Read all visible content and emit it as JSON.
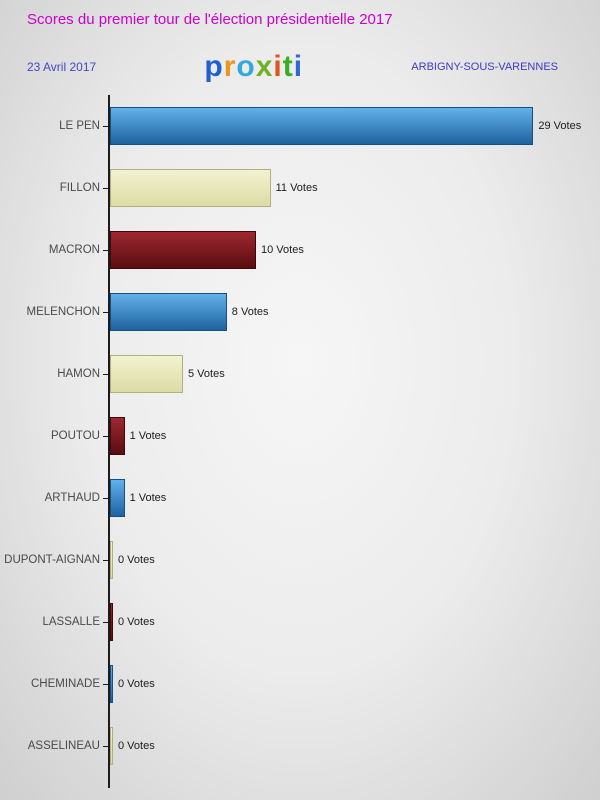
{
  "header": {
    "title": "Scores du premier tour de l'élection présidentielle 2017",
    "title_color": "#cc00cc",
    "date": "23 Avril 2017",
    "date_color": "#4545cf",
    "city": "ARBIGNY-SOUS-VARENNES",
    "city_color": "#3b3bc4",
    "logo_letters": [
      {
        "ch": "p",
        "color": "#1f5fd0"
      },
      {
        "ch": "r",
        "color": "#f0941d"
      },
      {
        "ch": "o",
        "color": "#35a8e0"
      },
      {
        "ch": "x",
        "color": "#6fb024"
      },
      {
        "ch": "i",
        "color": "#e0551d"
      },
      {
        "ch": "t",
        "color": "#35b024"
      },
      {
        "ch": "i",
        "color": "#2b6bd4"
      }
    ]
  },
  "chart_data": {
    "type": "bar",
    "orientation": "horizontal",
    "title": "Scores du premier tour de l'élection présidentielle 2017",
    "categories": [
      "LE PEN",
      "FILLON",
      "MACRON",
      "MELENCHON",
      "HAMON",
      "POUTOU",
      "ARTHAUD",
      "DUPONT-AIGNAN",
      "LASSALLE",
      "CHEMINADE",
      "ASSELINEAU"
    ],
    "values": [
      29,
      11,
      10,
      8,
      5,
      1,
      1,
      0,
      0,
      0,
      0
    ],
    "value_labels": [
      "29 Votes",
      "11 Votes",
      "10 Votes",
      "8 Votes",
      "5 Votes",
      "1 Votes",
      "1 Votes",
      "0 Votes",
      "0 Votes",
      "0 Votes",
      "0 Votes"
    ],
    "xlim": [
      0,
      30
    ],
    "grid": false,
    "legend": false,
    "bar_color_keys": [
      "blue",
      "cream",
      "darkred",
      "blue",
      "cream",
      "darkred",
      "blue",
      "cream",
      "darkred",
      "blue",
      "cream"
    ]
  },
  "palette": {
    "blue": {
      "top": "#63b1e9",
      "bottom": "#1e62a0",
      "border": "#164f84"
    },
    "cream": {
      "top": "#f2f2d0",
      "bottom": "#dcdca6",
      "border": "#b0b07c"
    },
    "darkred": {
      "top": "#9e2830",
      "bottom": "#5a0d12",
      "border": "#3c080c"
    }
  }
}
